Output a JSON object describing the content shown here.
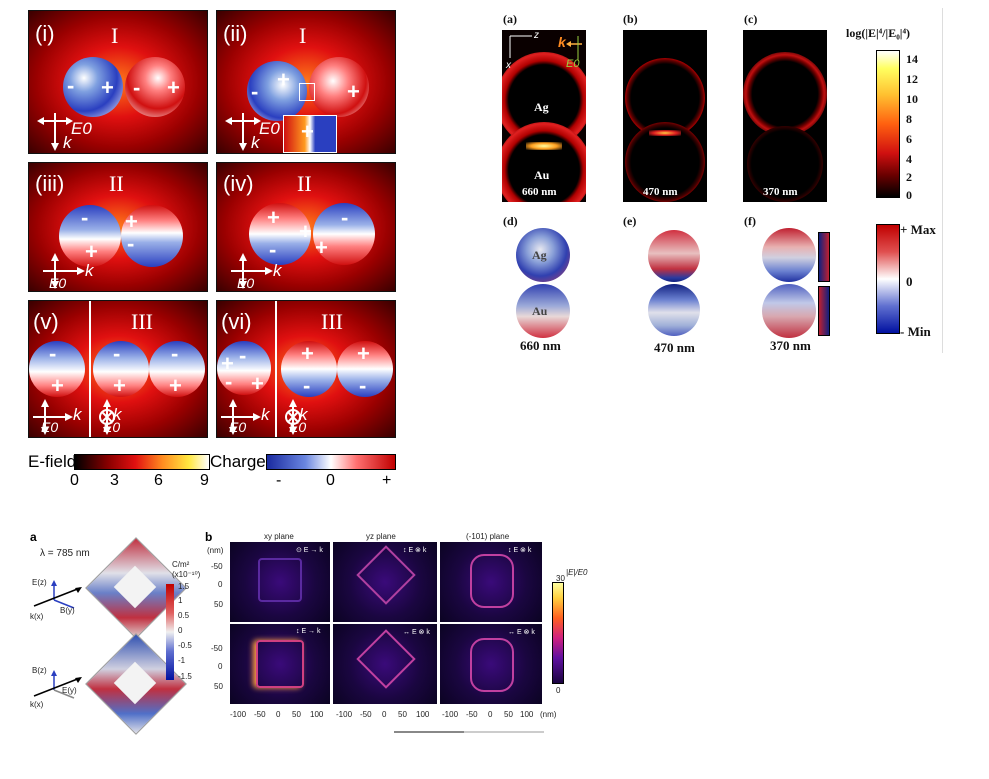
{
  "fig1": {
    "panels": [
      {
        "label": "(i)",
        "mode": "I"
      },
      {
        "label": "(ii)",
        "mode": "I"
      },
      {
        "label": "(iii)",
        "mode": "II"
      },
      {
        "label": "(iv)",
        "mode": "II"
      },
      {
        "label": "(v)",
        "mode": "III"
      },
      {
        "label": "(vi)",
        "mode": "III"
      }
    ],
    "k_label": "k",
    "e_label": "E0",
    "colorbar": {
      "efield_title": "E-field",
      "efield_ticks": [
        "0",
        "3",
        "6",
        "9"
      ],
      "charge_title": "Charge",
      "charge_ticks": [
        "-",
        "0",
        "+"
      ]
    }
  },
  "fig2": {
    "panel_labels": [
      "(a)",
      "(b)",
      "(c)",
      "(d)",
      "(e)",
      "(f)"
    ],
    "wavelengths": [
      "660 nm",
      "470 nm",
      "370 nm"
    ],
    "sphere_top": "Ag",
    "sphere_bottom": "Au",
    "axis_z": "z",
    "axis_x": "x",
    "k_label": "k",
    "e_label": "E0",
    "cb1_title": "log(|E|⁴/|E₀|⁴)",
    "cb1_ticks": [
      "14",
      "12",
      "10",
      "8",
      "6",
      "4",
      "2",
      "0"
    ],
    "cb2_ticks": {
      "max": "+ Max",
      "mid": "0",
      "min": "- Min"
    }
  },
  "fig3": {
    "label_a": "a",
    "label_b": "b",
    "lambda": "λ = 785 nm",
    "cb_unit": "C/m²",
    "cb_scale": "(x10⁻¹⁰)",
    "cb_ticks": [
      "1.5",
      "1",
      "0.5",
      "0",
      "-0.5",
      "-1",
      "-1.5"
    ],
    "axes_top": {
      "e": "E(z)",
      "b": "B(y)",
      "k": "k(x)"
    },
    "axes_bottom": {
      "b": "B(z)",
      "e": "E(y)",
      "k": "k(x)"
    },
    "planes": [
      "xy plane",
      "yz plane",
      "(-101) plane"
    ],
    "nm_label": "(nm)",
    "y_ticks": [
      "-50",
      "0",
      "50"
    ],
    "x_ticks": [
      "-100",
      "-50",
      "0",
      "50",
      "100"
    ],
    "x_unit": "(nm)",
    "top_row_icons": [
      "⊙ E → k",
      "↕ E ⊗ k",
      "↕ E ⊗ k"
    ],
    "bottom_row_icons": [
      "↕ E → k",
      "↔ E ⊗ k",
      "↔ E ⊗ k"
    ],
    "cb_title": "|E|/E0",
    "cb_ticks2": [
      "30",
      "0"
    ]
  }
}
